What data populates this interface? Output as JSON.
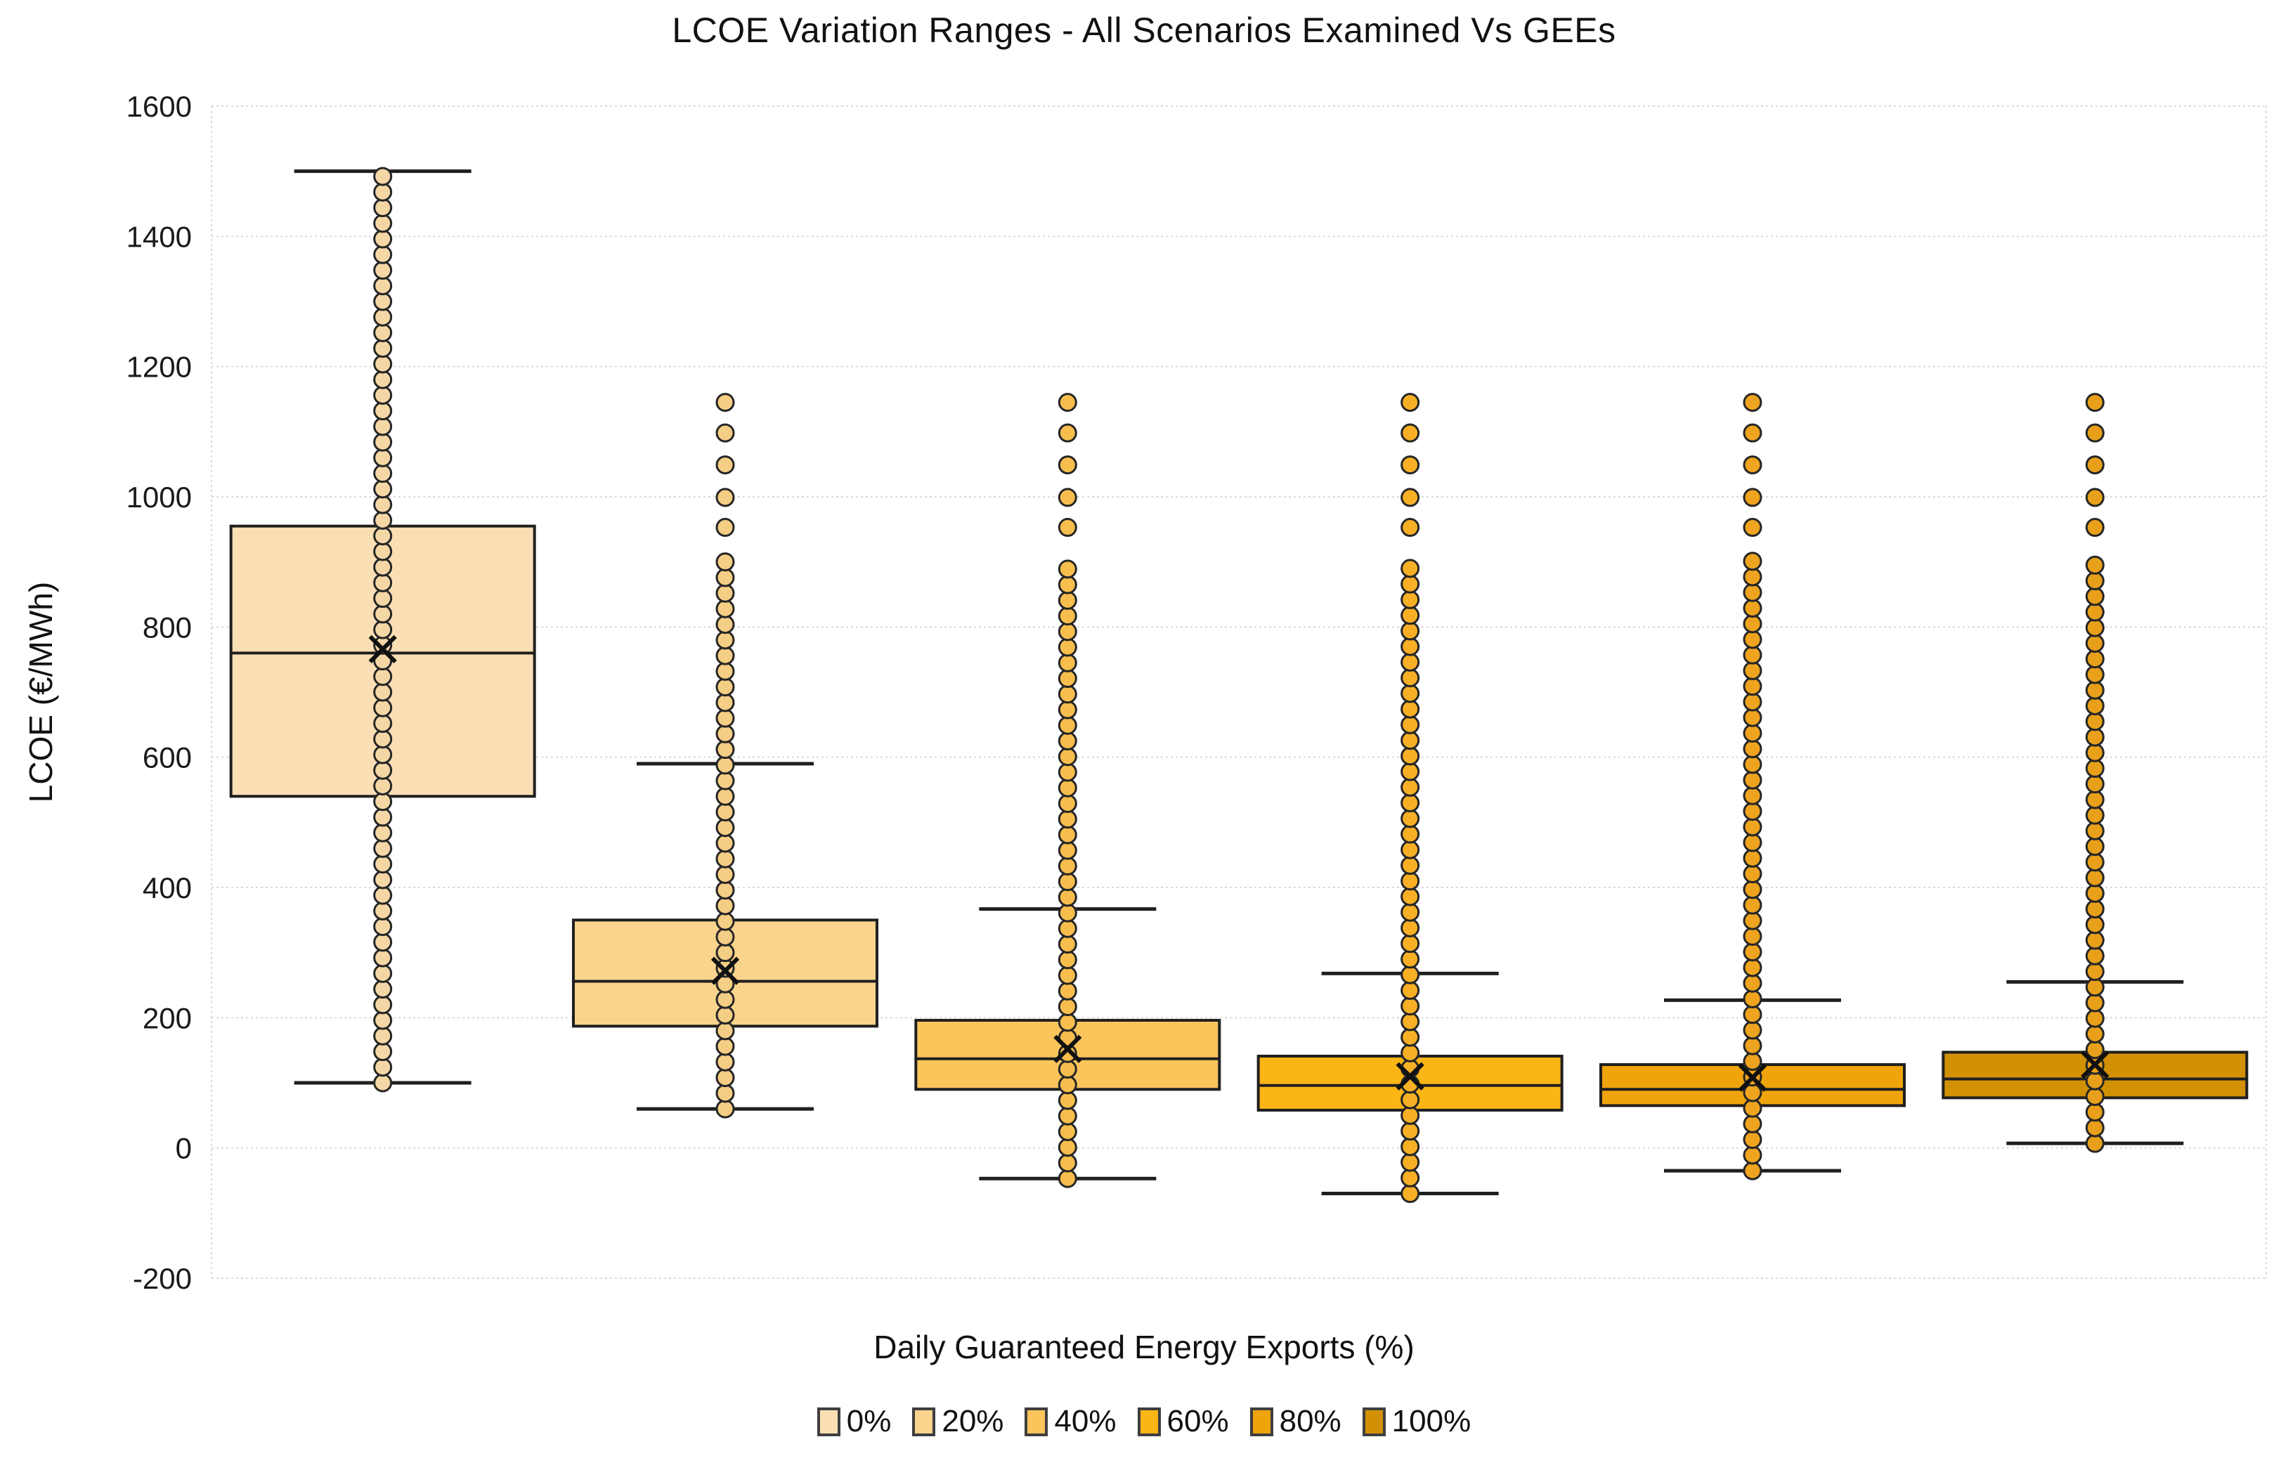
{
  "title": "LCOE Variation Ranges - All Scenarios Examined Vs GEEs",
  "axes": {
    "y_label": "LCOE (€/MWh)",
    "x_label": "Daily Guaranteed Energy Exports (%)",
    "y_ticks": [
      1600,
      1400,
      1200,
      1000,
      800,
      600,
      400,
      200,
      0,
      -200
    ],
    "y_min": -200,
    "y_max": 1600
  },
  "legend": {
    "items": [
      {
        "label": "0%",
        "color": "#FBDFB4"
      },
      {
        "label": "20%",
        "color": "#FAD48D"
      },
      {
        "label": "40%",
        "color": "#FBC55C"
      },
      {
        "label": "60%",
        "color": "#FBB515"
      },
      {
        "label": "80%",
        "color": "#F0A40C"
      },
      {
        "label": "100%",
        "color": "#D29104"
      }
    ]
  },
  "chart_data": {
    "type": "box",
    "title": "LCOE Variation Ranges - All Scenarios Examined Vs GEEs",
    "xlabel": "Daily Guaranteed Energy Exports (%)",
    "ylabel": "LCOE (€/MWh)",
    "ylim": [
      -200,
      1600
    ],
    "grid": true,
    "legend_position": "bottom",
    "categories": [
      "0%",
      "20%",
      "40%",
      "60%",
      "80%",
      "100%"
    ],
    "series": [
      {
        "name": "0%",
        "box_color": "#FBDFB4",
        "dot_color": "#F5D7A6",
        "q1": 540,
        "median": 760,
        "q3": 955,
        "mean": 766,
        "whisker_low": 100,
        "whisker_high": 1500,
        "dots_dense": {
          "from": 100,
          "to": 1500,
          "step": 24
        },
        "dots_sparse": []
      },
      {
        "name": "20%",
        "box_color": "#FAD48D",
        "dot_color": "#F5CE85",
        "q1": 187,
        "median": 256,
        "q3": 350,
        "mean": 272,
        "whisker_low": 60,
        "whisker_high": 590,
        "dots_dense": {
          "from": 60,
          "to": 908,
          "step": 24
        },
        "dots_sparse": [
          953,
          999,
          1049,
          1098,
          1145
        ]
      },
      {
        "name": "40%",
        "box_color": "#FBC55C",
        "dot_color": "#F7BE4E",
        "q1": 90,
        "median": 137,
        "q3": 196,
        "mean": 152,
        "whisker_low": -47,
        "whisker_high": 367,
        "dots_dense": {
          "from": -47,
          "to": 908,
          "step": 24
        },
        "dots_sparse": [
          953,
          999,
          1049,
          1098,
          1145
        ]
      },
      {
        "name": "60%",
        "box_color": "#FBB515",
        "dot_color": "#F7B025",
        "q1": 58,
        "median": 96,
        "q3": 141,
        "mean": 110,
        "whisker_low": -70,
        "whisker_high": 268,
        "dots_dense": {
          "from": -70,
          "to": 908,
          "step": 24
        },
        "dots_sparse": [
          953,
          999,
          1049,
          1098,
          1145
        ]
      },
      {
        "name": "80%",
        "box_color": "#F0A40C",
        "dot_color": "#EEA41E",
        "q1": 65,
        "median": 90,
        "q3": 128,
        "mean": 108,
        "whisker_low": -35,
        "whisker_high": 227,
        "dots_dense": {
          "from": -35,
          "to": 908,
          "step": 24
        },
        "dots_sparse": [
          953,
          999,
          1049,
          1098,
          1145
        ]
      },
      {
        "name": "100%",
        "box_color": "#D29104",
        "dot_color": "#E8A01A",
        "q1": 77,
        "median": 106,
        "q3": 147,
        "mean": 128,
        "whisker_low": 7,
        "whisker_high": 255,
        "dots_dense": {
          "from": 7,
          "to": 908,
          "step": 24
        },
        "dots_sparse": [
          953,
          999,
          1049,
          1098,
          1145
        ]
      }
    ]
  }
}
